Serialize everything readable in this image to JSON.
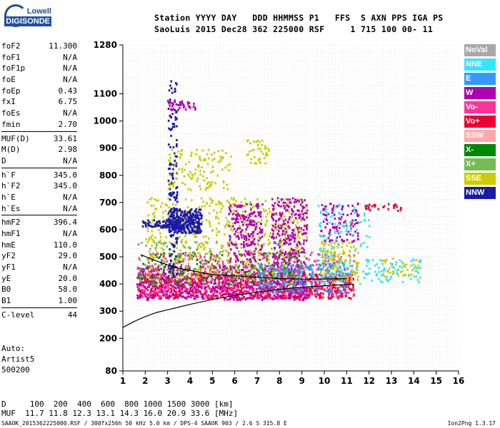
{
  "logo": {
    "line1": "Lowell",
    "line2": "DIGISONDE"
  },
  "header": {
    "line1": "Station YYYY DAY   DDD HHMMSS P1   FFS  S AXN PPS IGA PS",
    "line2": "SaoLuis 2015 Dec28 362 225000 RSF     1 715 100 00- 11"
  },
  "params": [
    {
      "name": "foF2",
      "value": "11.300"
    },
    {
      "name": "foF1",
      "value": "N/A"
    },
    {
      "name": "foF1p",
      "value": "N/A"
    },
    {
      "name": "foE",
      "value": "N/A"
    },
    {
      "name": "foEp",
      "value": "0.43"
    },
    {
      "name": "fxI",
      "value": "6.75"
    },
    {
      "name": "foEs",
      "value": "N/A"
    },
    {
      "name": "fmin",
      "value": "2.70"
    },
    {
      "name": "MUF(D)",
      "value": "33.61"
    },
    {
      "name": "M(D)",
      "value": "2.98"
    },
    {
      "name": "D",
      "value": "N/A"
    },
    {
      "name": "h`F",
      "value": "345.0"
    },
    {
      "name": "h`F2",
      "value": "345.0"
    },
    {
      "name": "h`E",
      "value": "N/A"
    },
    {
      "name": "h`Es",
      "value": "N/A"
    },
    {
      "name": "hmF2",
      "value": "396.4"
    },
    {
      "name": "hmF1",
      "value": "N/A"
    },
    {
      "name": "hmE",
      "value": "110.0"
    },
    {
      "name": "yF2",
      "value": "29.0"
    },
    {
      "name": "yF1",
      "value": "N/A"
    },
    {
      "name": "yE",
      "value": "20.0"
    },
    {
      "name": "B0",
      "value": "58.0"
    },
    {
      "name": "B1",
      "value": "1.00"
    },
    {
      "name": "C-level",
      "value": "44"
    }
  ],
  "auto": {
    "line1": "Auto:",
    "line2": "Artist5",
    "line3": "500200"
  },
  "legend": [
    {
      "label": "NoVal",
      "color": "#a8a8a8"
    },
    {
      "label": "NNE",
      "color": "#33e6ff"
    },
    {
      "label": "E",
      "color": "#3399ff"
    },
    {
      "label": "W",
      "color": "#b000b0"
    },
    {
      "label": "Vo-",
      "color": "#ff3399"
    },
    {
      "label": "Vo+",
      "color": "#ee0033"
    },
    {
      "label": "SSW",
      "color": "#ffaaaa"
    },
    {
      "label": "X-",
      "color": "#008800"
    },
    {
      "label": "X+",
      "color": "#77bb55"
    },
    {
      "label": "SSE",
      "color": "#cccc00"
    },
    {
      "label": "NNW",
      "color": "#1a1aa6"
    }
  ],
  "bottom": {
    "d_line": "D     100  200  400  600  800 1000 1500 3000 [km]",
    "muf_line": "MUF  11.7 11.8 12.3 13.1 14.3 16.0 20.9 33.6 [MHz]"
  },
  "footer": {
    "left": "SAAOK_2015362225000.RSF / 300fx256h 50 kHz 5.0 km / DPS-4 SAAOK 903 / 2.6 S 315.8 E",
    "right": "Ion2Png 1.3.17"
  },
  "chart_data": {
    "type": "scatter",
    "title": "",
    "xlabel": "",
    "ylabel": "",
    "xlim": [
      1,
      16
    ],
    "ylim": [
      80,
      1280
    ],
    "x_ticks": [
      1,
      2,
      3,
      4,
      5,
      6,
      7,
      8,
      9,
      10,
      11,
      12,
      13,
      14,
      15,
      16
    ],
    "y_ticks": [
      80,
      200,
      300,
      400,
      500,
      600,
      700,
      800,
      900,
      1000,
      1100,
      1280
    ],
    "grid": true,
    "legend_position": "right",
    "clusters": [
      {
        "series": "Vo+",
        "color": "#ee0033",
        "x": [
          1.6,
          11.3
        ],
        "y": [
          350,
          440
        ],
        "n": 900
      },
      {
        "series": "W",
        "color": "#b000b0",
        "x": [
          1.6,
          9.2
        ],
        "y": [
          345,
          470
        ],
        "n": 700
      },
      {
        "series": "Vo-",
        "color": "#ff3399",
        "x": [
          1.6,
          11.3
        ],
        "y": [
          350,
          520
        ],
        "n": 500
      },
      {
        "series": "SSE",
        "color": "#cccc00",
        "x": [
          2.0,
          9.2
        ],
        "y": [
          420,
          720
        ],
        "n": 600
      },
      {
        "series": "SSE",
        "color": "#cccc00",
        "x": [
          9.8,
          11.5
        ],
        "y": [
          410,
          560
        ],
        "n": 150
      },
      {
        "series": "X-",
        "color": "#008800",
        "x": [
          1.6,
          9.0
        ],
        "y": [
          400,
          520
        ],
        "n": 150
      },
      {
        "series": "X+",
        "color": "#77bb55",
        "x": [
          1.6,
          9.0
        ],
        "y": [
          400,
          560
        ],
        "n": 150
      },
      {
        "series": "NNW",
        "color": "#1a1aa6",
        "x": [
          3.0,
          4.5
        ],
        "y": [
          590,
          680
        ],
        "n": 250
      },
      {
        "series": "NNW",
        "color": "#1a1aa6",
        "x": [
          1.8,
          4.4
        ],
        "y": [
          610,
          640
        ],
        "n": 100
      },
      {
        "series": "NNW",
        "color": "#1a1aa6",
        "x": [
          3.0,
          3.4
        ],
        "y": [
          420,
          1150
        ],
        "n": 160
      },
      {
        "series": "W",
        "color": "#b000b0",
        "x": [
          5.7,
          7.2
        ],
        "y": [
          480,
          700
        ],
        "n": 200
      },
      {
        "series": "W",
        "color": "#b000b0",
        "x": [
          7.6,
          9.2
        ],
        "y": [
          470,
          720
        ],
        "n": 250
      },
      {
        "series": "W",
        "color": "#b000b0",
        "x": [
          9.8,
          11.5
        ],
        "y": [
          560,
          700
        ],
        "n": 110
      },
      {
        "series": "NNE",
        "color": "#33e6ff",
        "x": [
          9.7,
          12.0
        ],
        "y": [
          400,
          700
        ],
        "n": 120
      },
      {
        "series": "E",
        "color": "#3399ff",
        "x": [
          7.0,
          11.0
        ],
        "y": [
          370,
          480
        ],
        "n": 200
      },
      {
        "series": "SSE",
        "color": "#cccc00",
        "x": [
          3.0,
          5.8
        ],
        "y": [
          750,
          900
        ],
        "n": 120
      },
      {
        "series": "SSE",
        "color": "#cccc00",
        "x": [
          6.5,
          7.5
        ],
        "y": [
          840,
          940
        ],
        "n": 40
      },
      {
        "series": "NNE",
        "color": "#33e6ff",
        "x": [
          11.8,
          14.3
        ],
        "y": [
          410,
          500
        ],
        "n": 70
      },
      {
        "series": "SSE",
        "color": "#cccc00",
        "x": [
          12.5,
          14.2
        ],
        "y": [
          430,
          500
        ],
        "n": 40
      },
      {
        "series": "Vo+",
        "color": "#ee0033",
        "x": [
          11.8,
          13.5
        ],
        "y": [
          670,
          700
        ],
        "n": 30
      },
      {
        "series": "W",
        "color": "#b000b0",
        "x": [
          2.9,
          4.2
        ],
        "y": [
          1040,
          1080
        ],
        "n": 40
      }
    ],
    "profile_curve": {
      "x": [
        1,
        1.5,
        2,
        2.5,
        3,
        3.5,
        4,
        5,
        6,
        7,
        8,
        9,
        10,
        11,
        11.3
      ],
      "y": [
        240,
        262,
        280,
        295,
        305,
        315,
        325,
        343,
        358,
        370,
        380,
        388,
        394,
        398,
        399
      ]
    },
    "trace_curve": {
      "x": [
        1.8,
        2.5,
        3,
        3.5,
        4,
        5,
        6,
        7,
        8,
        9,
        10,
        11
      ],
      "y": [
        508,
        485,
        470,
        458,
        450,
        435,
        430,
        425,
        420,
        418,
        418,
        420
      ]
    }
  }
}
